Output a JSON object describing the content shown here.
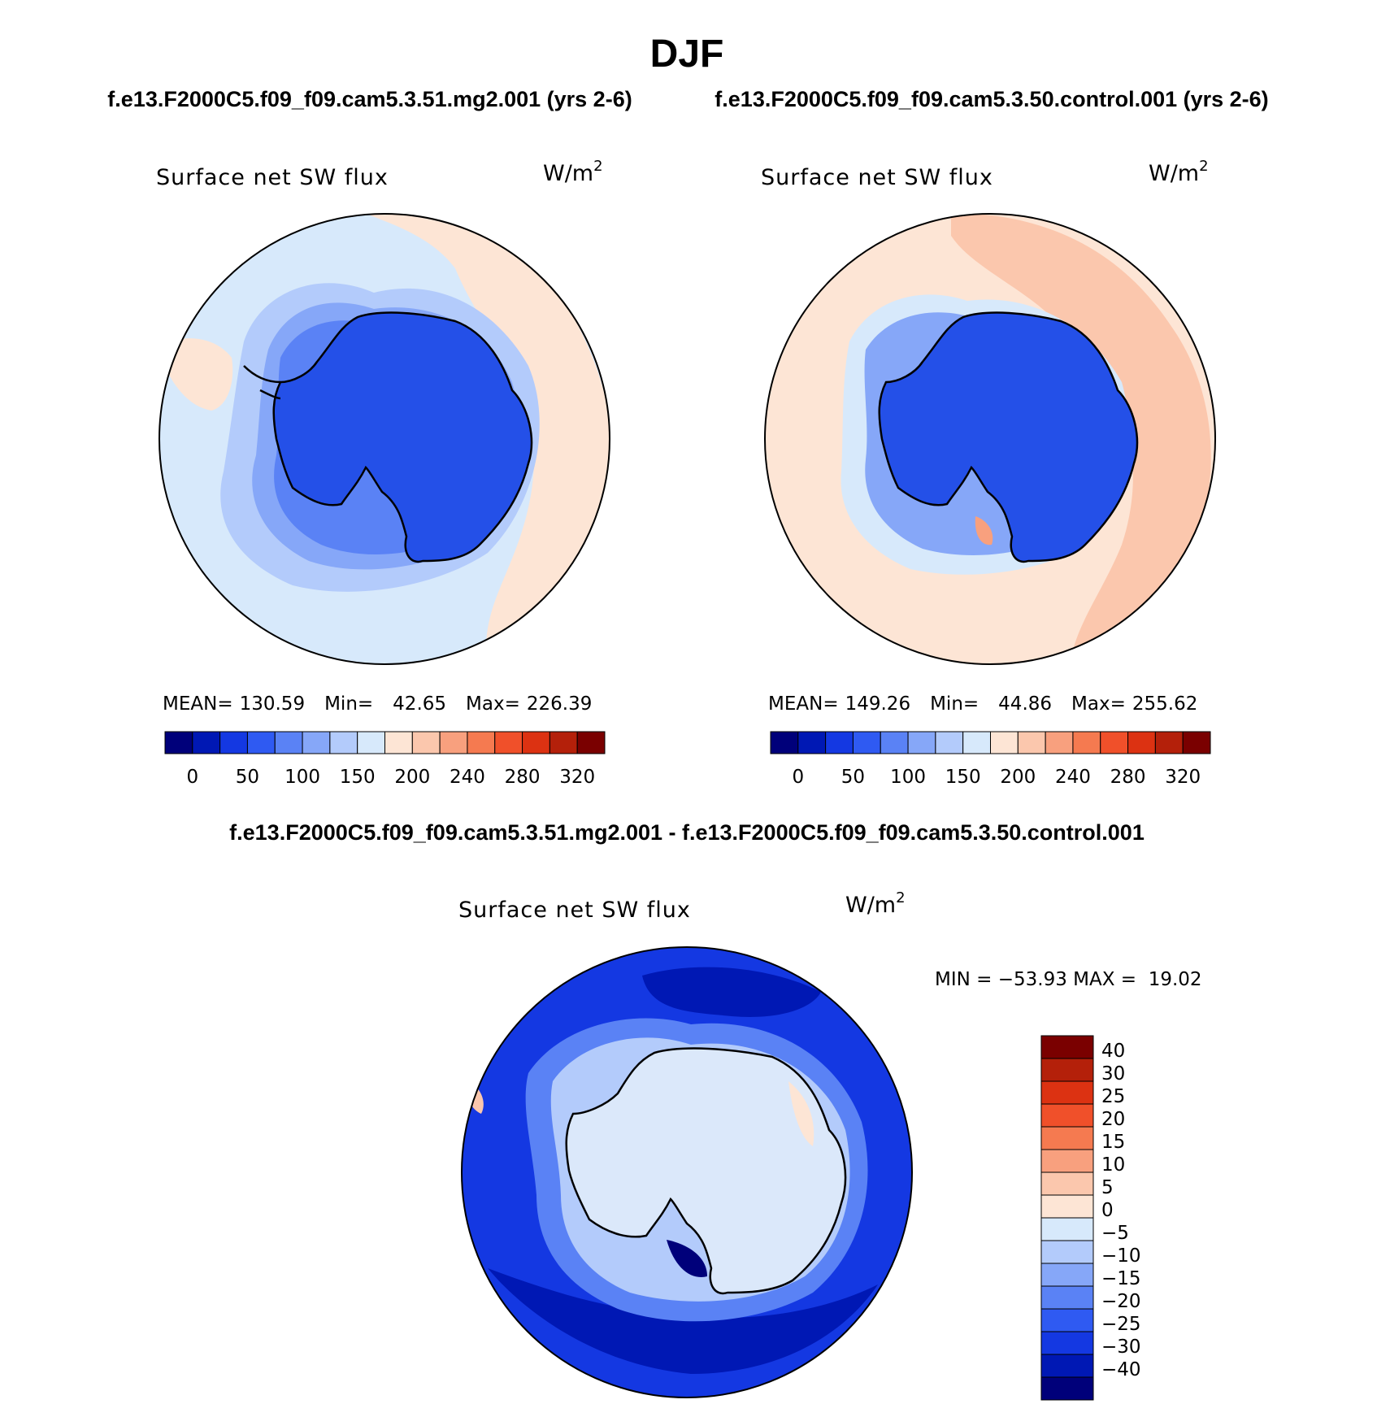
{
  "figure": {
    "season": "DJF",
    "left_case_title": "f.e13.F2000C5.f09_f09.cam5.3.51.mg2.001 (yrs 2-6)",
    "right_case_title": "f.e13.F2000C5.f09_f09.cam5.3.50.control.001 (yrs 2-6)",
    "diff_title": "f.e13.F2000C5.f09_f09.cam5.3.51.mg2.001 - f.e13.F2000C5.f09_f09.cam5.3.50.control.001"
  },
  "panels": [
    {
      "variable": "Surface net SW flux",
      "units": "W/m",
      "units_exp": "2",
      "stats": {
        "mean_label": "MEAN=",
        "mean": "130.59",
        "min_label": "Min=",
        "min": "42.65",
        "max_label": "Max=",
        "max": "226.39"
      },
      "ocean_color": "#d7e9fb"
    },
    {
      "variable": "Surface net SW flux",
      "units": "W/m",
      "units_exp": "2",
      "stats": {
        "mean_label": "MEAN=",
        "mean": "149.26",
        "min_label": "Min=",
        "min": "44.86",
        "max_label": "Max=",
        "max": "255.62"
      },
      "ocean_color": "#fde5d5"
    },
    {
      "variable": "Surface net SW flux",
      "units": "W/m",
      "units_exp": "2",
      "stats_text": "MIN = −53.93 MAX =  19.02",
      "ocean_color": "#1a45e0"
    }
  ],
  "colorbar_abs": {
    "colors": [
      "#00007a",
      "#0018b4",
      "#1438e2",
      "#2f5af2",
      "#5a82f5",
      "#86a7f8",
      "#b3cbfb",
      "#d7e9fb",
      "#fde5d5",
      "#fbc7ad",
      "#f8a07e",
      "#f57a50",
      "#f0502a",
      "#dc3212",
      "#b4200a",
      "#7a0000"
    ],
    "labels": [
      "0",
      "50",
      "100",
      "150",
      "200",
      "240",
      "280",
      "320"
    ]
  },
  "colorbar_diff": {
    "colors_top_to_bottom": [
      "#7a0000",
      "#b4200a",
      "#dc3212",
      "#f0502a",
      "#f57a50",
      "#f8a07e",
      "#fbc7ad",
      "#fde5d5",
      "#d7e9fb",
      "#b3cbfb",
      "#86a7f8",
      "#5a82f5",
      "#2f5af2",
      "#1438e2",
      "#0018b4",
      "#00007a"
    ],
    "labels_top_to_bottom": [
      "40",
      "30",
      "25",
      "20",
      "15",
      "10",
      "5",
      "0",
      "−5",
      "−10",
      "−15",
      "−20",
      "−25",
      "−30",
      "−40"
    ]
  },
  "colors": {
    "continent_abs": "#2450e8",
    "continent_diff": "#dbe8fa",
    "coastline": "#000000"
  }
}
